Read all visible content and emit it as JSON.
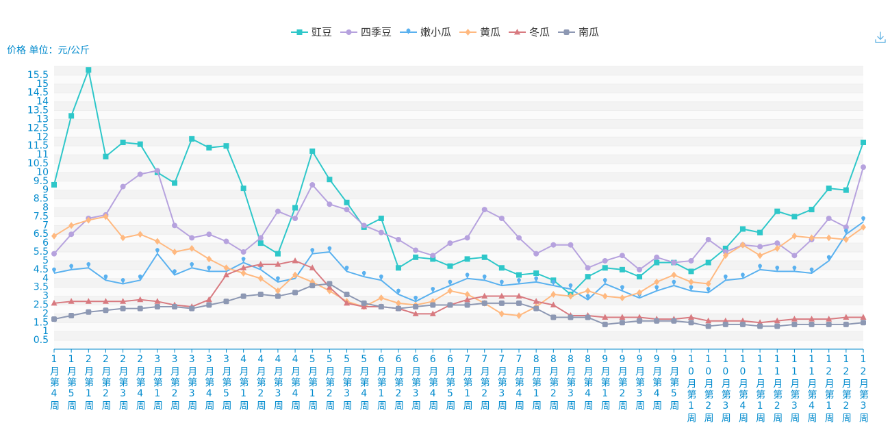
{
  "toolbox": {
    "save_icon": "download-icon",
    "color": "#6ab7e4"
  },
  "chart_data": {
    "type": "line",
    "ylabel": "价格 单位：元/公斤",
    "ylim": [
      0,
      16
    ],
    "yticks": [
      0.5,
      1,
      1.5,
      2,
      2.5,
      3,
      3.5,
      4,
      4.5,
      5,
      5.5,
      6,
      6.5,
      7,
      7.5,
      8,
      8.5,
      9,
      9.5,
      10,
      10.5,
      11,
      11.5,
      12,
      12.5,
      13,
      13.5,
      14,
      14.5,
      15,
      15.5
    ],
    "grid": true,
    "axis_color": "#008acd",
    "legend": {
      "position": "top-center",
      "text_color": "#333333"
    },
    "categories": [
      "1月第4周",
      "1月第5周",
      "2月第1周",
      "2月第2周",
      "2月第3周",
      "2月第4周",
      "3月第1周",
      "3月第2周",
      "3月第3周",
      "3月第4周",
      "3月第5周",
      "4月第1周",
      "4月第2周",
      "4月第3周",
      "4月第4周",
      "5月第1周",
      "5月第2周",
      "5月第3周",
      "5月第4周",
      "6月第1周",
      "6月第2周",
      "6月第3周",
      "6月第4周",
      "6月第5周",
      "7月第1周",
      "7月第2周",
      "7月第3周",
      "7月第4周",
      "8月第1周",
      "8月第2周",
      "8月第3周",
      "8月第4周",
      "9月第1周",
      "9月第2周",
      "9月第3周",
      "9月第4周",
      "9月第5周",
      "10月第1周",
      "10月第2周",
      "10月第3周",
      "10月第4周",
      "11月第1周",
      "11月第2周",
      "11月第3周",
      "11月第4周",
      "12月第1周",
      "12月第2周",
      "12月第3周"
    ],
    "series": [
      {
        "name": "豇豆",
        "symbol": "rect",
        "icon": "square-marker-icon",
        "color": "#2ec7c9",
        "values": [
          9.3,
          13.2,
          15.8,
          10.9,
          11.7,
          11.6,
          10.0,
          9.4,
          11.9,
          11.4,
          11.5,
          9.1,
          6.0,
          5.4,
          8.0,
          11.2,
          9.6,
          8.3,
          6.9,
          7.4,
          4.6,
          5.2,
          5.1,
          4.7,
          5.1,
          5.2,
          4.6,
          4.2,
          4.3,
          3.9,
          3.1,
          4.1,
          4.6,
          4.5,
          4.1,
          4.9,
          4.9,
          4.4,
          4.9,
          5.7,
          6.8,
          6.6,
          7.8,
          7.5,
          7.9,
          9.1,
          9.0,
          11.7
        ]
      },
      {
        "name": "四季豆",
        "symbol": "circle",
        "icon": "circle-marker-icon",
        "color": "#b6a2de",
        "values": [
          5.4,
          6.5,
          7.4,
          7.6,
          9.2,
          9.9,
          10.1,
          7.0,
          6.3,
          6.5,
          6.1,
          5.5,
          6.3,
          7.8,
          7.4,
          9.3,
          8.2,
          7.9,
          7.0,
          6.6,
          6.2,
          5.6,
          5.3,
          6.0,
          6.3,
          7.9,
          7.4,
          6.3,
          5.4,
          5.9,
          5.9,
          4.6,
          5.0,
          5.3,
          4.5,
          5.2,
          4.9,
          5.0,
          6.2,
          5.5,
          5.9,
          5.8,
          6.0,
          5.3,
          6.2,
          7.4,
          6.9,
          10.3
        ]
      },
      {
        "name": "嫩小瓜",
        "symbol": "pin",
        "icon": "pin-marker-icon",
        "color": "#5ab1ef",
        "values": [
          4.3,
          4.5,
          4.6,
          3.9,
          3.7,
          3.9,
          5.4,
          4.2,
          4.6,
          4.4,
          4.4,
          4.9,
          4.5,
          3.8,
          4.0,
          5.4,
          5.5,
          4.4,
          4.1,
          3.9,
          3.1,
          2.7,
          3.2,
          3.6,
          4.0,
          3.9,
          3.6,
          3.7,
          3.8,
          3.6,
          3.4,
          2.8,
          3.7,
          3.3,
          2.9,
          3.3,
          3.6,
          3.3,
          3.2,
          3.9,
          4.0,
          4.5,
          4.4,
          4.4,
          4.3,
          5.0,
          6.5,
          7.2
        ]
      },
      {
        "name": "黄瓜",
        "symbol": "diamond",
        "icon": "diamond-marker-icon",
        "color": "#ffb980",
        "values": [
          6.4,
          7.0,
          7.3,
          7.5,
          6.3,
          6.5,
          6.1,
          5.5,
          5.7,
          5.1,
          4.6,
          4.3,
          4.0,
          3.3,
          4.2,
          3.8,
          3.3,
          2.7,
          2.4,
          2.9,
          2.6,
          2.5,
          2.7,
          3.3,
          3.1,
          2.6,
          2.0,
          1.9,
          2.4,
          3.1,
          3.0,
          3.3,
          3.0,
          2.9,
          3.2,
          3.8,
          4.2,
          3.8,
          3.7,
          5.3,
          5.9,
          5.3,
          5.7,
          6.4,
          6.3,
          6.3,
          6.2,
          6.9
        ]
      },
      {
        "name": "冬瓜",
        "symbol": "triangle",
        "icon": "triangle-marker-icon",
        "color": "#d87a80",
        "values": [
          2.6,
          2.7,
          2.7,
          2.7,
          2.7,
          2.8,
          2.7,
          2.5,
          2.4,
          2.8,
          4.2,
          4.6,
          4.8,
          4.8,
          5.0,
          4.6,
          3.5,
          2.6,
          2.4,
          2.4,
          2.3,
          2.0,
          2.0,
          2.5,
          2.8,
          3.0,
          3.0,
          3.0,
          2.7,
          2.5,
          1.9,
          1.9,
          1.8,
          1.8,
          1.8,
          1.7,
          1.7,
          1.8,
          1.6,
          1.6,
          1.6,
          1.5,
          1.6,
          1.7,
          1.7,
          1.7,
          1.8,
          1.8
        ]
      },
      {
        "name": "南瓜",
        "symbol": "roundRect",
        "icon": "rounded-square-marker-icon",
        "color": "#8d98b3",
        "values": [
          1.7,
          1.9,
          2.1,
          2.2,
          2.3,
          2.3,
          2.4,
          2.4,
          2.3,
          2.5,
          2.7,
          3.0,
          3.1,
          3.0,
          3.2,
          3.6,
          3.7,
          3.1,
          2.6,
          2.4,
          2.3,
          2.4,
          2.5,
          2.5,
          2.5,
          2.6,
          2.6,
          2.6,
          2.3,
          1.8,
          1.8,
          1.8,
          1.4,
          1.5,
          1.6,
          1.6,
          1.6,
          1.5,
          1.3,
          1.4,
          1.4,
          1.3,
          1.3,
          1.4,
          1.4,
          1.4,
          1.4,
          1.5
        ]
      }
    ]
  }
}
